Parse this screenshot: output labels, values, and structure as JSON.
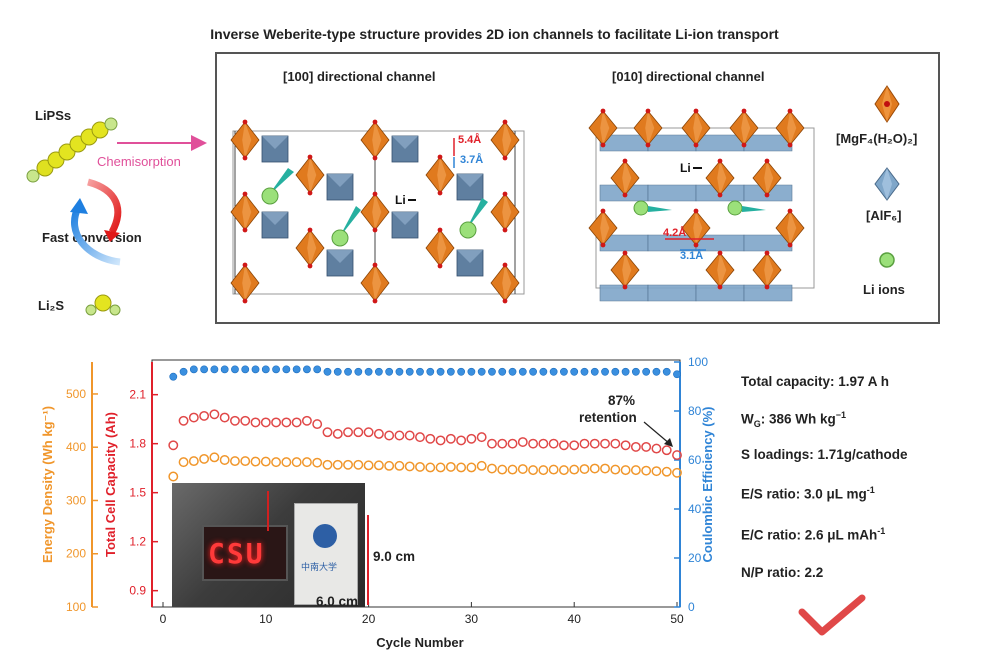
{
  "figure": {
    "title": "Inverse Weberite-type structure provides 2D ion channels to facilitate Li-ion transport"
  },
  "left_scheme": {
    "lipss_label": "LiPSs",
    "chemisorption_label": "Chemisorption",
    "fast_conversion_label": "Fast conversion",
    "li2s_label": "Li₂S"
  },
  "structure": {
    "channel_100_label": "[100] directional channel",
    "channel_010_label": "[010] directional channel",
    "li_label": "Li",
    "dim_100_a": "5.4Å",
    "dim_100_b": "3.7Å",
    "dim_010_a": "4.2Å",
    "dim_010_b": "3.1Å"
  },
  "legend": {
    "mgf4_label": "[MgF₄(H₂O)₂]",
    "alf6_label": "[AlF₆]",
    "li_ions_label": "Li ions",
    "colors": {
      "mg_octahedron": "#e07a1e",
      "al_octahedron": "#7fa6c9",
      "li_ion": "#8fd36a"
    }
  },
  "photo": {
    "display_text": "CSU",
    "height_label": "9.0 cm",
    "width_label": "6.0 cm"
  },
  "annotation": {
    "retention_line1": "87%",
    "retention_line2": "retention"
  },
  "specs": {
    "total_capacity": "Total capacity:  1.97 A h",
    "wg_prefix": "W",
    "wg_sub": "G",
    "wg_value": ":  386 Wh kg",
    "wg_sup": "−1",
    "s_loadings": "S loadings: 1.71g/cathode",
    "es_value": "E/S ratio:  3.0 μL mg",
    "es_sup": "-1",
    "ec_value": "E/C ratio:  2.6 μL mAh",
    "ec_sup": "-1",
    "np_ratio": "N/P ratio:  2.2"
  },
  "chart_data": {
    "type": "scatter",
    "xlabel": "Cycle Number",
    "xlim": [
      0,
      50
    ],
    "xticks": [
      0,
      10,
      20,
      30,
      40,
      50
    ],
    "axes": {
      "energy": {
        "label": "Energy Density (Wh kg⁻¹)",
        "ylim": [
          100,
          560
        ],
        "ticks": [
          100,
          200,
          300,
          400,
          500
        ],
        "color": "#f0962b"
      },
      "capacity": {
        "label": "Total Cell Capacity (Ah)",
        "ylim": [
          0.8,
          2.3
        ],
        "ticks": [
          0.9,
          1.2,
          1.5,
          1.8,
          2.1
        ],
        "color": "#e0202a"
      },
      "ce": {
        "label": "Coulombic Efficiency (%)",
        "ylim": [
          0,
          100
        ],
        "ticks": [
          0,
          20,
          40,
          60,
          80,
          100
        ],
        "color": "#2f84d6"
      }
    },
    "series": [
      {
        "axis": "capacity",
        "marker": "open-circle",
        "color": "#e04848",
        "x": [
          1,
          2,
          3,
          4,
          5,
          6,
          7,
          8,
          9,
          10,
          11,
          12,
          13,
          14,
          15,
          16,
          17,
          18,
          19,
          20,
          21,
          22,
          23,
          24,
          25,
          26,
          27,
          28,
          29,
          30,
          31,
          32,
          33,
          34,
          35,
          36,
          37,
          38,
          39,
          40,
          41,
          42,
          43,
          44,
          45,
          46,
          47,
          48,
          49,
          50
        ],
        "values": [
          1.79,
          1.94,
          1.96,
          1.97,
          1.98,
          1.96,
          1.94,
          1.94,
          1.93,
          1.93,
          1.93,
          1.93,
          1.93,
          1.94,
          1.92,
          1.87,
          1.86,
          1.87,
          1.87,
          1.87,
          1.86,
          1.85,
          1.85,
          1.85,
          1.84,
          1.83,
          1.82,
          1.83,
          1.82,
          1.83,
          1.84,
          1.8,
          1.8,
          1.8,
          1.81,
          1.8,
          1.8,
          1.8,
          1.79,
          1.79,
          1.8,
          1.8,
          1.8,
          1.8,
          1.79,
          1.78,
          1.78,
          1.77,
          1.76,
          1.73
        ]
      },
      {
        "axis": "energy",
        "marker": "open-circle",
        "color": "#f0962b",
        "x": [
          1,
          2,
          3,
          4,
          5,
          6,
          7,
          8,
          9,
          10,
          11,
          12,
          13,
          14,
          15,
          16,
          17,
          18,
          19,
          20,
          21,
          22,
          23,
          24,
          25,
          26,
          27,
          28,
          29,
          30,
          31,
          32,
          33,
          34,
          35,
          36,
          37,
          38,
          39,
          40,
          41,
          42,
          43,
          44,
          45,
          46,
          47,
          48,
          49,
          50
        ],
        "values": [
          345,
          372,
          374,
          378,
          381,
          376,
          374,
          374,
          373,
          373,
          372,
          372,
          372,
          372,
          371,
          367,
          367,
          367,
          367,
          366,
          366,
          365,
          365,
          364,
          363,
          362,
          362,
          363,
          362,
          362,
          365,
          360,
          358,
          358,
          359,
          357,
          357,
          358,
          357,
          358,
          359,
          360,
          360,
          358,
          357,
          357,
          356,
          355,
          354,
          352
        ]
      },
      {
        "axis": "ce",
        "marker": "filled-circle",
        "color": "#3a8fdf",
        "x": [
          1,
          2,
          3,
          4,
          5,
          6,
          7,
          8,
          9,
          10,
          11,
          12,
          13,
          14,
          15,
          16,
          17,
          18,
          19,
          20,
          21,
          22,
          23,
          24,
          25,
          26,
          27,
          28,
          29,
          30,
          31,
          32,
          33,
          34,
          35,
          36,
          37,
          38,
          39,
          40,
          41,
          42,
          43,
          44,
          45,
          46,
          47,
          48,
          49,
          50
        ],
        "values": [
          94,
          96,
          97,
          97,
          97,
          97,
          97,
          97,
          97,
          97,
          97,
          97,
          97,
          97,
          97,
          96,
          96,
          96,
          96,
          96,
          96,
          96,
          96,
          96,
          96,
          96,
          96,
          96,
          96,
          96,
          96,
          96,
          96,
          96,
          96,
          96,
          96,
          96,
          96,
          96,
          96,
          96,
          96,
          96,
          96,
          96,
          96,
          96,
          96,
          95
        ]
      }
    ]
  }
}
